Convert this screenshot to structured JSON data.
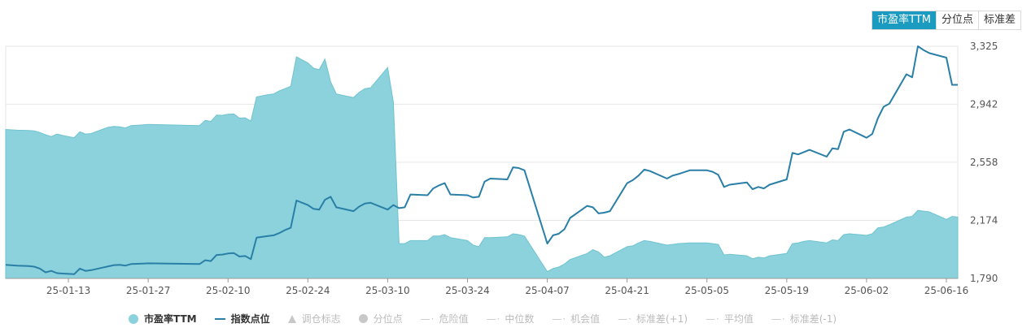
{
  "tabs": [
    {
      "label": "市盈率TTM",
      "active": true
    },
    {
      "label": "分位点",
      "active": false
    },
    {
      "label": "标准差",
      "active": false
    }
  ],
  "legend": [
    {
      "label": "市盈率TTM",
      "symbol": "area",
      "active": true
    },
    {
      "label": "指数点位",
      "symbol": "line",
      "active": true
    },
    {
      "label": "调仓标志",
      "symbol": "triangle",
      "active": false
    },
    {
      "label": "分位点",
      "symbol": "dot",
      "active": false
    },
    {
      "label": "危险值",
      "symbol": "dash",
      "active": false
    },
    {
      "label": "中位数",
      "symbol": "dash",
      "active": false
    },
    {
      "label": "机会值",
      "symbol": "dash",
      "active": false
    },
    {
      "label": "标准差(+1)",
      "symbol": "dash",
      "active": false
    },
    {
      "label": "平均值",
      "symbol": "dash",
      "active": false
    },
    {
      "label": "标准差(-1)",
      "symbol": "dash",
      "active": false
    }
  ],
  "colors": {
    "area_fill": "#8bd2dc",
    "area_stroke": "#6fc3cf",
    "line": "#2a7fa7",
    "grid": "#e6e6e6",
    "axis_text": "#555555",
    "tab_active": "#1a9bbf"
  },
  "chart_data": {
    "type": "line",
    "x_range": [
      "2025-01-02",
      "2025-06-18"
    ],
    "x_ticks": [
      "25-01-13",
      "25-01-27",
      "25-02-10",
      "25-02-24",
      "25-03-10",
      "25-03-24",
      "25-04-07",
      "25-04-21",
      "25-05-05",
      "25-05-19",
      "25-06-02",
      "25-06-16"
    ],
    "y_right": {
      "ticks": [
        "3,325",
        "2,942",
        "2,558",
        "2,174",
        "1,790"
      ],
      "range": [
        1790,
        3325
      ]
    },
    "grid": "horizontal",
    "legend_position": "bottom",
    "series": [
      {
        "name": "市盈率TTM",
        "type": "area",
        "segments": [
          [
            [
              "2025-01-02",
              2775
            ],
            [
              "2025-01-04",
              2770
            ],
            [
              "2025-01-06",
              2768
            ],
            [
              "2025-01-07",
              2765
            ],
            [
              "2025-01-08",
              2755
            ],
            [
              "2025-01-09",
              2740
            ],
            [
              "2025-01-10",
              2728
            ],
            [
              "2025-01-11",
              2745
            ],
            [
              "2025-01-12",
              2735
            ],
            [
              "2025-01-14",
              2720
            ],
            [
              "2025-01-15",
              2760
            ],
            [
              "2025-01-16",
              2745
            ],
            [
              "2025-01-17",
              2748
            ],
            [
              "2025-01-20",
              2790
            ],
            [
              "2025-01-21",
              2795
            ],
            [
              "2025-01-22",
              2792
            ],
            [
              "2025-01-23",
              2785
            ],
            [
              "2025-01-24",
              2800
            ],
            [
              "2025-01-26",
              2805
            ],
            [
              "2025-01-27",
              2808
            ],
            [
              "2025-02-05",
              2800
            ],
            [
              "2025-02-06",
              2835
            ],
            [
              "2025-02-07",
              2828
            ],
            [
              "2025-02-08",
              2870
            ],
            [
              "2025-02-09",
              2868
            ],
            [
              "2025-02-10",
              2875
            ],
            [
              "2025-02-11",
              2878
            ],
            [
              "2025-02-12",
              2850
            ],
            [
              "2025-02-13",
              2852
            ],
            [
              "2025-02-14",
              2830
            ],
            [
              "2025-02-15",
              2990
            ],
            [
              "2025-02-17",
              3005
            ],
            [
              "2025-02-18",
              3010
            ],
            [
              "2025-02-19",
              3030
            ],
            [
              "2025-02-20",
              3045
            ],
            [
              "2025-02-21",
              3060
            ],
            [
              "2025-02-22",
              3255
            ],
            [
              "2025-02-24",
              3215
            ],
            [
              "2025-02-25",
              3180
            ],
            [
              "2025-02-26",
              3170
            ],
            [
              "2025-02-27",
              3240
            ],
            [
              "2025-02-28",
              3090
            ],
            [
              "2025-03-01",
              3010
            ],
            [
              "2025-03-04",
              2985
            ],
            [
              "2025-03-05",
              3020
            ],
            [
              "2025-03-06",
              3045
            ],
            [
              "2025-03-07",
              3050
            ],
            [
              "2025-03-10",
              3185
            ],
            [
              "2025-03-11",
              2955
            ],
            [
              "2025-03-12",
              2020
            ],
            [
              "2025-03-13",
              2020
            ],
            [
              "2025-03-14",
              2040
            ],
            [
              "2025-03-17",
              2040
            ],
            [
              "2025-03-18",
              2070
            ],
            [
              "2025-03-19",
              2070
            ],
            [
              "2025-03-20",
              2080
            ],
            [
              "2025-03-21",
              2060
            ],
            [
              "2025-03-24",
              2040
            ],
            [
              "2025-03-25",
              2010
            ],
            [
              "2025-03-26",
              2000
            ],
            [
              "2025-03-27",
              2060
            ],
            [
              "2025-03-28",
              2060
            ],
            [
              "2025-03-31",
              2065
            ],
            [
              "2025-04-01",
              2085
            ],
            [
              "2025-04-02",
              2080
            ],
            [
              "2025-04-03",
              2070
            ],
            [
              "2025-04-07",
              1835
            ],
            [
              "2025-04-08",
              1855
            ],
            [
              "2025-04-09",
              1865
            ],
            [
              "2025-04-10",
              1885
            ],
            [
              "2025-04-11",
              1915
            ],
            [
              "2025-04-14",
              1955
            ],
            [
              "2025-04-15",
              1980
            ],
            [
              "2025-04-16",
              1965
            ],
            [
              "2025-04-17",
              1930
            ],
            [
              "2025-04-18",
              1940
            ],
            [
              "2025-04-21",
              2000
            ],
            [
              "2025-04-22",
              2005
            ],
            [
              "2025-04-23",
              2025
            ],
            [
              "2025-04-24",
              2040
            ],
            [
              "2025-04-25",
              2035
            ],
            [
              "2025-04-28",
              2010
            ],
            [
              "2025-04-29",
              2015
            ],
            [
              "2025-04-30",
              2020
            ],
            [
              "2025-05-02",
              2025
            ],
            [
              "2025-05-05",
              2025
            ],
            [
              "2025-05-06",
              2020
            ],
            [
              "2025-05-07",
              2015
            ],
            [
              "2025-05-08",
              1945
            ],
            [
              "2025-05-09",
              1950
            ],
            [
              "2025-05-12",
              1940
            ],
            [
              "2025-05-13",
              1920
            ],
            [
              "2025-05-14",
              1930
            ],
            [
              "2025-05-15",
              1925
            ],
            [
              "2025-05-16",
              1940
            ],
            [
              "2025-05-19",
              1955
            ],
            [
              "2025-05-20",
              2020
            ],
            [
              "2025-05-21",
              2025
            ],
            [
              "2025-05-22",
              2035
            ],
            [
              "2025-05-23",
              2040
            ],
            [
              "2025-05-26",
              2025
            ],
            [
              "2025-05-27",
              2045
            ],
            [
              "2025-05-28",
              2040
            ],
            [
              "2025-05-29",
              2080
            ],
            [
              "2025-05-30",
              2085
            ],
            [
              "2025-06-02",
              2075
            ],
            [
              "2025-06-03",
              2085
            ],
            [
              "2025-06-04",
              2125
            ],
            [
              "2025-06-05",
              2130
            ],
            [
              "2025-06-06",
              2145
            ],
            [
              "2025-06-09",
              2195
            ],
            [
              "2025-06-10",
              2200
            ],
            [
              "2025-06-11",
              2240
            ],
            [
              "2025-06-12",
              2235
            ],
            [
              "2025-06-13",
              2230
            ],
            [
              "2025-06-16",
              2180
            ],
            [
              "2025-06-17",
              2200
            ],
            [
              "2025-06-18",
              2195
            ]
          ]
        ]
      },
      {
        "name": "指数点位",
        "type": "line",
        "points": [
          [
            "2025-01-02",
            1880
          ],
          [
            "2025-01-04",
            1875
          ],
          [
            "2025-01-06",
            1872
          ],
          [
            "2025-01-07",
            1868
          ],
          [
            "2025-01-08",
            1855
          ],
          [
            "2025-01-09",
            1830
          ],
          [
            "2025-01-10",
            1840
          ],
          [
            "2025-01-11",
            1825
          ],
          [
            "2025-01-12",
            1822
          ],
          [
            "2025-01-14",
            1818
          ],
          [
            "2025-01-15",
            1855
          ],
          [
            "2025-01-16",
            1840
          ],
          [
            "2025-01-17",
            1845
          ],
          [
            "2025-01-20",
            1870
          ],
          [
            "2025-01-21",
            1878
          ],
          [
            "2025-01-22",
            1880
          ],
          [
            "2025-01-23",
            1875
          ],
          [
            "2025-01-24",
            1885
          ],
          [
            "2025-01-26",
            1888
          ],
          [
            "2025-01-27",
            1890
          ],
          [
            "2025-02-05",
            1885
          ],
          [
            "2025-02-06",
            1910
          ],
          [
            "2025-02-07",
            1905
          ],
          [
            "2025-02-08",
            1945
          ],
          [
            "2025-02-09",
            1948
          ],
          [
            "2025-02-10",
            1955
          ],
          [
            "2025-02-11",
            1958
          ],
          [
            "2025-02-12",
            1935
          ],
          [
            "2025-02-13",
            1938
          ],
          [
            "2025-02-14",
            1918
          ],
          [
            "2025-02-15",
            2060
          ],
          [
            "2025-02-17",
            2070
          ],
          [
            "2025-02-18",
            2075
          ],
          [
            "2025-02-19",
            2090
          ],
          [
            "2025-02-20",
            2110
          ],
          [
            "2025-02-21",
            2125
          ],
          [
            "2025-02-22",
            2305
          ],
          [
            "2025-02-24",
            2275
          ],
          [
            "2025-02-25",
            2250
          ],
          [
            "2025-02-26",
            2245
          ],
          [
            "2025-02-27",
            2310
          ],
          [
            "2025-02-28",
            2330
          ],
          [
            "2025-03-01",
            2260
          ],
          [
            "2025-03-04",
            2235
          ],
          [
            "2025-03-05",
            2265
          ],
          [
            "2025-03-06",
            2285
          ],
          [
            "2025-03-07",
            2290
          ],
          [
            "2025-03-10",
            2245
          ],
          [
            "2025-03-11",
            2275
          ],
          [
            "2025-03-12",
            2255
          ],
          [
            "2025-03-13",
            2260
          ],
          [
            "2025-03-14",
            2345
          ],
          [
            "2025-03-17",
            2340
          ],
          [
            "2025-03-18",
            2385
          ],
          [
            "2025-03-19",
            2405
          ],
          [
            "2025-03-20",
            2420
          ],
          [
            "2025-03-21",
            2345
          ],
          [
            "2025-03-24",
            2340
          ],
          [
            "2025-03-25",
            2325
          ],
          [
            "2025-03-26",
            2330
          ],
          [
            "2025-03-27",
            2430
          ],
          [
            "2025-03-28",
            2450
          ],
          [
            "2025-03-31",
            2445
          ],
          [
            "2025-04-01",
            2525
          ],
          [
            "2025-04-02",
            2520
          ],
          [
            "2025-04-03",
            2505
          ],
          [
            "2025-04-07",
            2020
          ],
          [
            "2025-04-08",
            2075
          ],
          [
            "2025-04-09",
            2085
          ],
          [
            "2025-04-10",
            2115
          ],
          [
            "2025-04-11",
            2190
          ],
          [
            "2025-04-14",
            2270
          ],
          [
            "2025-04-15",
            2260
          ],
          [
            "2025-04-16",
            2220
          ],
          [
            "2025-04-17",
            2225
          ],
          [
            "2025-04-18",
            2235
          ],
          [
            "2025-04-21",
            2420
          ],
          [
            "2025-04-22",
            2440
          ],
          [
            "2025-04-23",
            2470
          ],
          [
            "2025-04-24",
            2510
          ],
          [
            "2025-04-25",
            2500
          ],
          [
            "2025-04-28",
            2450
          ],
          [
            "2025-04-29",
            2470
          ],
          [
            "2025-04-30",
            2480
          ],
          [
            "2025-05-02",
            2505
          ],
          [
            "2025-05-05",
            2505
          ],
          [
            "2025-05-06",
            2495
          ],
          [
            "2025-05-07",
            2475
          ],
          [
            "2025-05-08",
            2395
          ],
          [
            "2025-05-09",
            2410
          ],
          [
            "2025-05-12",
            2425
          ],
          [
            "2025-05-13",
            2380
          ],
          [
            "2025-05-14",
            2395
          ],
          [
            "2025-05-15",
            2385
          ],
          [
            "2025-05-16",
            2410
          ],
          [
            "2025-05-19",
            2445
          ],
          [
            "2025-05-20",
            2620
          ],
          [
            "2025-05-21",
            2610
          ],
          [
            "2025-05-22",
            2625
          ],
          [
            "2025-05-23",
            2640
          ],
          [
            "2025-05-26",
            2595
          ],
          [
            "2025-05-27",
            2650
          ],
          [
            "2025-05-28",
            2645
          ],
          [
            "2025-05-29",
            2760
          ],
          [
            "2025-05-30",
            2775
          ],
          [
            "2025-06-02",
            2720
          ],
          [
            "2025-06-03",
            2745
          ],
          [
            "2025-06-04",
            2850
          ],
          [
            "2025-06-05",
            2925
          ],
          [
            "2025-06-06",
            2945
          ],
          [
            "2025-06-09",
            3140
          ],
          [
            "2025-06-10",
            3120
          ],
          [
            "2025-06-11",
            3325
          ],
          [
            "2025-06-12",
            3300
          ],
          [
            "2025-06-13",
            3280
          ],
          [
            "2025-06-16",
            3250
          ],
          [
            "2025-06-17",
            3070
          ],
          [
            "2025-06-18",
            3070
          ]
        ]
      }
    ]
  }
}
